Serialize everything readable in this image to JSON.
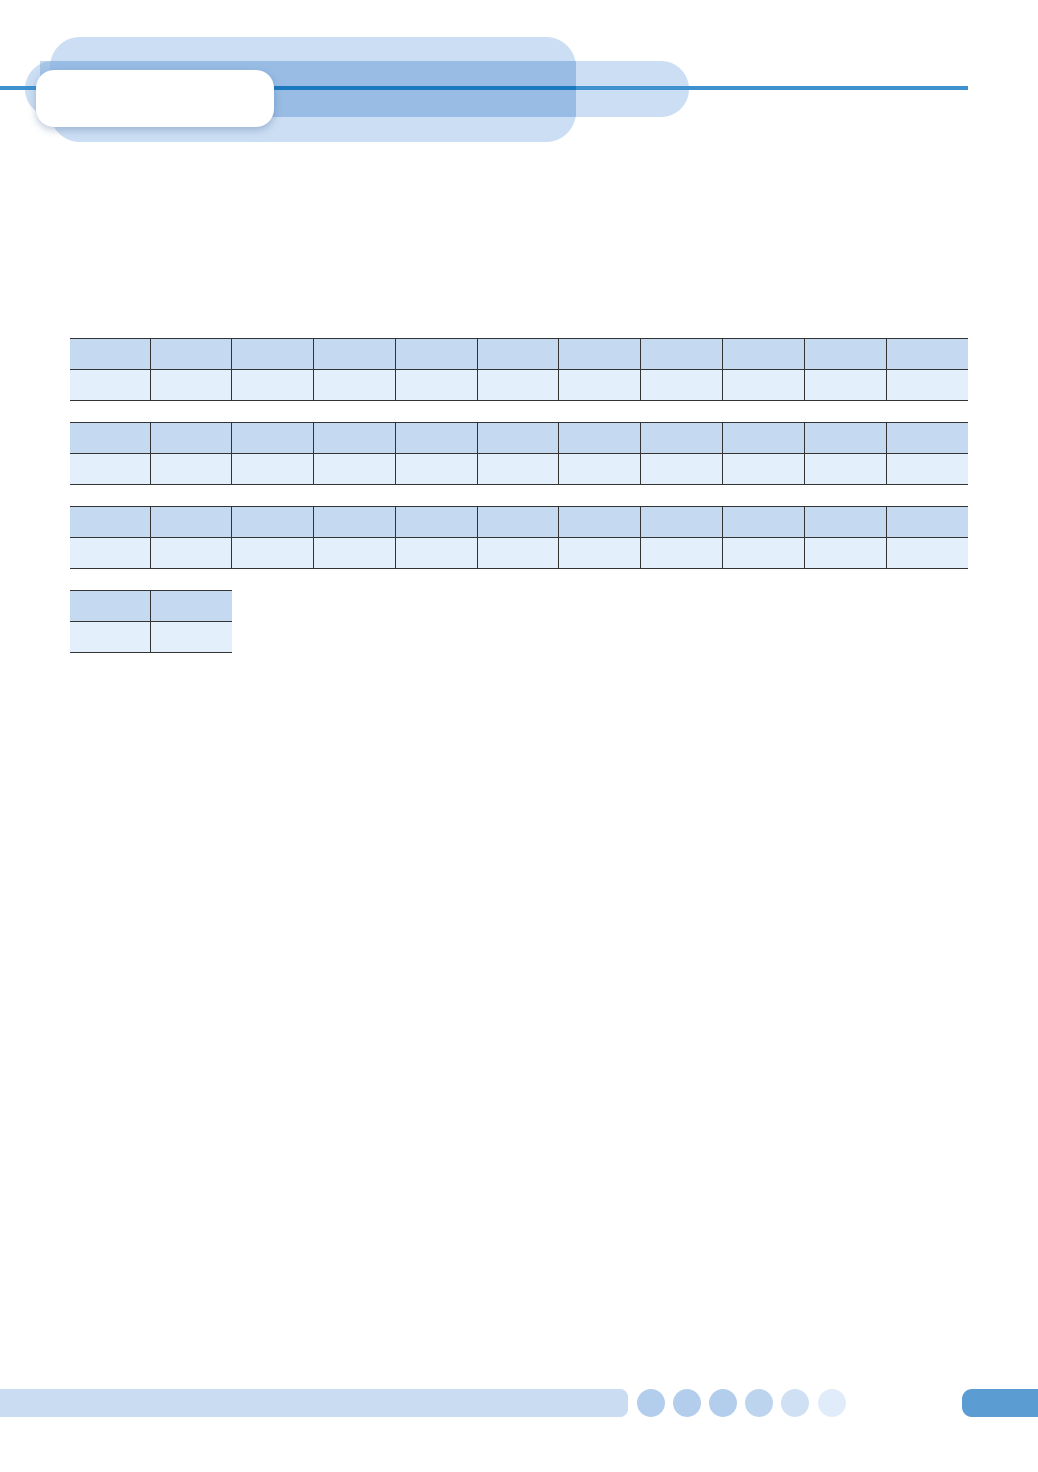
{
  "colors": {
    "accent": "#3f90cf",
    "header_cell": "#c5d9f1",
    "body_cell": "#e3effa",
    "page_tab": "#5b9dd3"
  },
  "tables": [
    {
      "columns": 11,
      "header": [
        "",
        "",
        "",
        "",
        "",
        "",
        "",
        "",
        "",
        "",
        ""
      ],
      "row": [
        "",
        "",
        "",
        "",
        "",
        "",
        "",
        "",
        "",
        "",
        ""
      ]
    },
    {
      "columns": 11,
      "header": [
        "",
        "",
        "",
        "",
        "",
        "",
        "",
        "",
        "",
        "",
        ""
      ],
      "row": [
        "",
        "",
        "",
        "",
        "",
        "",
        "",
        "",
        "",
        "",
        ""
      ]
    },
    {
      "columns": 11,
      "header": [
        "",
        "",
        "",
        "",
        "",
        "",
        "",
        "",
        "",
        "",
        ""
      ],
      "row": [
        "",
        "",
        "",
        "",
        "",
        "",
        "",
        "",
        "",
        "",
        ""
      ]
    },
    {
      "columns": 2,
      "header": [
        "",
        ""
      ],
      "row": [
        "",
        ""
      ]
    }
  ]
}
